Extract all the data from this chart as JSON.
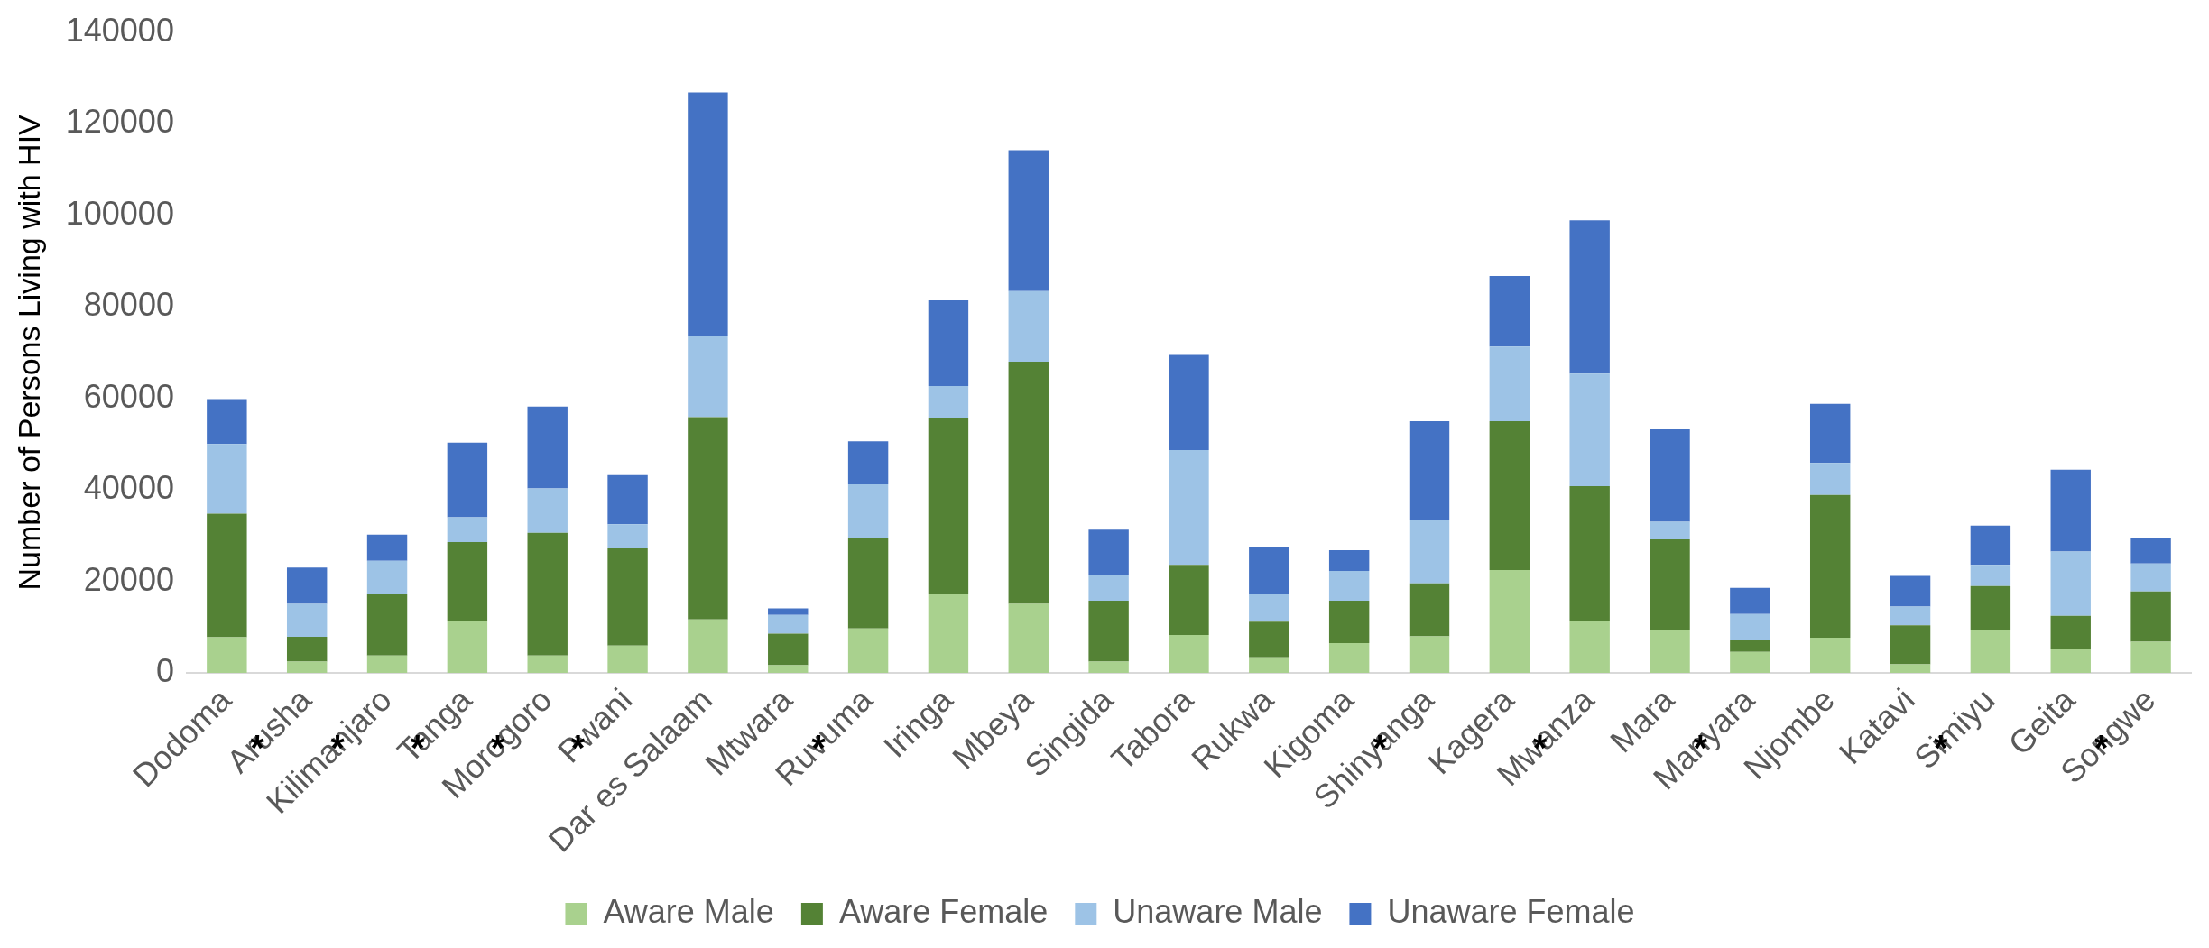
{
  "chart_data": {
    "type": "bar",
    "stacked": true,
    "ylabel": "Number of Persons Living with HIV",
    "categories": [
      "Dodoma",
      "Arusha",
      "Kilimanjaro",
      "Tanga",
      "Morogoro",
      "Pwani",
      "Dar es Salaam",
      "Mtwara",
      "Ruvuma",
      "Iringa",
      "Mbeya",
      "Singida",
      "Tabora",
      "Rukwa",
      "Kigoma",
      "Shinyanga",
      "Kagera",
      "Mwanza",
      "Mara",
      "Manyara",
      "Njombe",
      "Katavi",
      "Simiyu",
      "Geita",
      "Songwe"
    ],
    "series": [
      {
        "name": "Aware Male",
        "color": "#a9d18e",
        "values": [
          7800,
          2500,
          3800,
          11300,
          3800,
          6000,
          11700,
          1700,
          9700,
          17300,
          15100,
          2500,
          8300,
          3400,
          6500,
          8000,
          22500,
          11300,
          9500,
          4600,
          7700,
          1900,
          9300,
          5200,
          6800
        ]
      },
      {
        "name": "Aware Female",
        "color": "#548235",
        "values": [
          27000,
          5400,
          13400,
          17300,
          26800,
          21400,
          44200,
          6900,
          19800,
          38500,
          52900,
          13300,
          15300,
          7800,
          9300,
          11600,
          32500,
          29500,
          19700,
          2500,
          31200,
          8500,
          9700,
          7300,
          11000
        ]
      },
      {
        "name": "Unaware Male",
        "color": "#9dc3e6",
        "values": [
          15200,
          7200,
          7300,
          5400,
          9700,
          5100,
          17700,
          4100,
          11700,
          6900,
          15400,
          5700,
          25100,
          6100,
          6500,
          13800,
          16300,
          24600,
          3800,
          5800,
          7000,
          4100,
          4600,
          14000,
          6100
        ]
      },
      {
        "name": "Unaware Female",
        "color": "#4472c4",
        "values": [
          9800,
          7900,
          5700,
          16300,
          17900,
          10700,
          53200,
          1400,
          9400,
          18700,
          30800,
          9800,
          20800,
          10300,
          4500,
          21600,
          15400,
          33500,
          20200,
          5700,
          12900,
          6700,
          8600,
          17900,
          5500
        ]
      }
    ],
    "ylim": [
      0,
      140000
    ],
    "yticks": [
      0,
      20000,
      40000,
      60000,
      80000,
      100000,
      120000,
      140000
    ],
    "grid": false,
    "legend": "bottom",
    "annotations": [
      "*",
      "*",
      "*",
      "*",
      "*",
      "*",
      "*",
      "*",
      "*",
      "*",
      "*"
    ]
  }
}
